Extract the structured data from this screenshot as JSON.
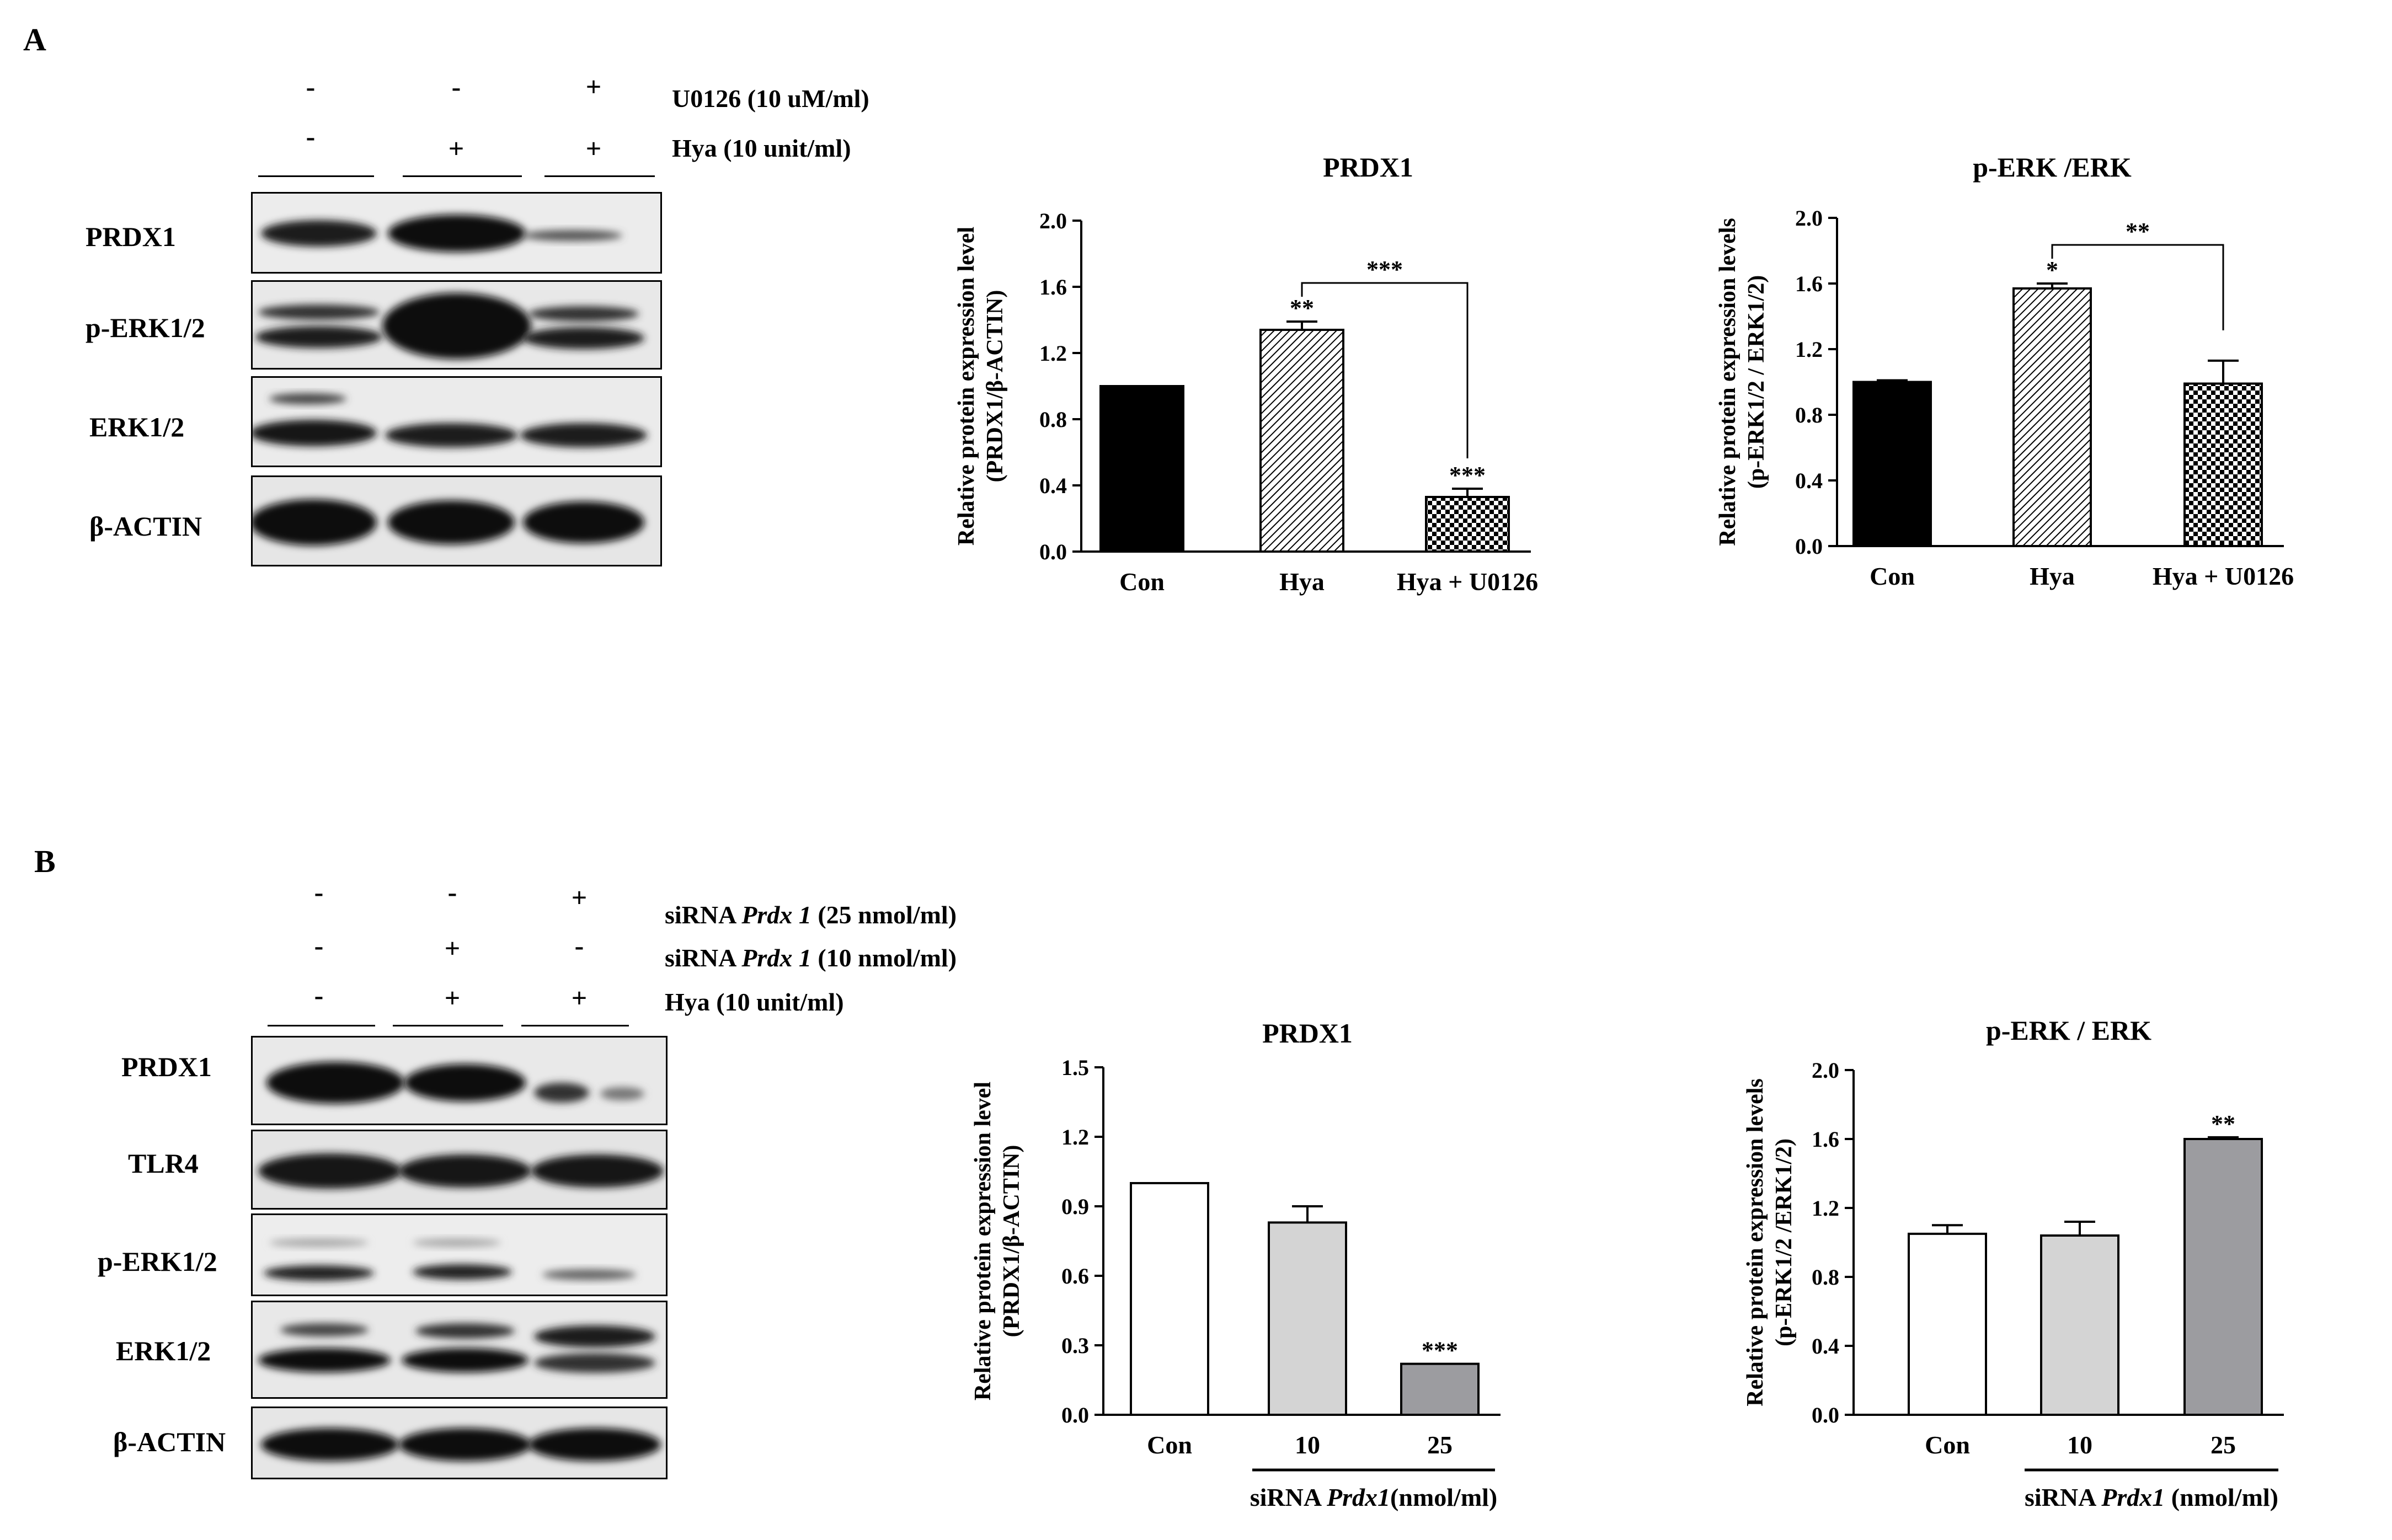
{
  "panelA": {
    "letter": "A",
    "signs": [
      [
        "-",
        "-",
        "+"
      ],
      [
        "-",
        "+",
        "+"
      ]
    ],
    "treatments": [
      "U0126 (10 uM/ml)",
      "Hya (10 unit/ml)"
    ],
    "blot_labels": [
      "PRDX1",
      "p-ERK1/2",
      "ERK1/2",
      "β-ACTIN"
    ]
  },
  "panelB": {
    "letter": "B",
    "signs": [
      [
        "-",
        "-",
        "+"
      ],
      [
        "-",
        "+",
        "-"
      ],
      [
        "-",
        "+",
        "+"
      ]
    ],
    "treatments": [
      {
        "prefix": "siRNA ",
        "gene": "Prdx 1",
        "suffix": " (25 nmol/ml)"
      },
      {
        "prefix": "siRNA ",
        "gene": "Prdx 1",
        "suffix": " (10 nmol/ml)"
      },
      {
        "prefix": "",
        "gene": "",
        "suffix": "Hya (10 unit/ml)"
      }
    ],
    "blot_labels": [
      "PRDX1",
      "TLR4",
      "p-ERK1/2",
      "ERK1/2",
      "β-ACTIN"
    ]
  },
  "chart_data": [
    {
      "type": "bar",
      "title": "PRDX1",
      "ylabel_lines": [
        "Relative protein expression level",
        "(PRDX1/β-ACTIN)"
      ],
      "categories": [
        "Con",
        "Hya",
        "Hya + U0126"
      ],
      "values": [
        1.0,
        1.34,
        0.33
      ],
      "errors": [
        0,
        0.05,
        0.05
      ],
      "ylim": [
        0,
        2.0
      ],
      "yticks": [
        "0.0",
        "0.4",
        "0.8",
        "1.2",
        "1.6",
        "2.0"
      ],
      "significance": [
        "",
        "**",
        "***"
      ],
      "bracket": {
        "from": 1,
        "to": 2,
        "label": "***"
      },
      "bar_styles": [
        "solid",
        "hatch",
        "checker"
      ]
    },
    {
      "type": "bar",
      "title": "p-ERK /ERK",
      "ylabel_lines": [
        "Relative protein expression levels",
        "(p-ERK1/2 / ERK1/2)"
      ],
      "categories": [
        "Con",
        "Hya",
        "Hya + U0126"
      ],
      "values": [
        1.0,
        1.57,
        0.99
      ],
      "errors": [
        0.01,
        0.03,
        0.14
      ],
      "ylim": [
        0,
        2.0
      ],
      "yticks": [
        "0.0",
        "0.4",
        "0.8",
        "1.2",
        "1.6",
        "2.0"
      ],
      "significance": [
        "",
        "*",
        ""
      ],
      "bracket": {
        "from": 1,
        "to": 2,
        "label": "**"
      },
      "bar_styles": [
        "solid",
        "hatch",
        "checker"
      ]
    },
    {
      "type": "bar",
      "title": "PRDX1",
      "ylabel_lines": [
        "Relative protein expression level",
        "(PRDX1/β-ACTIN)"
      ],
      "categories": [
        "Con",
        "10",
        "25"
      ],
      "values": [
        1.0,
        0.83,
        0.22
      ],
      "errors": [
        0,
        0.07,
        0
      ],
      "ylim": [
        0,
        1.5
      ],
      "yticks": [
        "0.0",
        "0.3",
        "0.6",
        "0.9",
        "1.2",
        "1.5"
      ],
      "significance": [
        "",
        "",
        "***"
      ],
      "group_label": {
        "prefix": "siRNA ",
        "gene": "Prdx1",
        "suffix": "(nmol/ml)"
      },
      "bar_styles": [
        "white",
        "light",
        "mid"
      ]
    },
    {
      "type": "bar",
      "title": "p-ERK / ERK",
      "ylabel_lines": [
        "Relative protein expression levels",
        "(p-ERK1/2 /ERK1/2)"
      ],
      "categories": [
        "Con",
        "10",
        "25"
      ],
      "values": [
        1.05,
        1.04,
        1.6
      ],
      "errors": [
        0.05,
        0.08,
        0.01
      ],
      "ylim": [
        0,
        2.0
      ],
      "yticks": [
        "0.0",
        "0.4",
        "0.8",
        "1.2",
        "1.6",
        "2.0"
      ],
      "significance": [
        "",
        "",
        "**"
      ],
      "group_label": {
        "prefix": "siRNA ",
        "gene": "Prdx1",
        "suffix": " (nmol/ml)"
      },
      "bar_styles": [
        "white",
        "light",
        "mid"
      ]
    }
  ],
  "colors": {
    "solid": "#000000",
    "light": "#d4d4d4",
    "mid": "#9c9ca0",
    "white": "#ffffff"
  }
}
